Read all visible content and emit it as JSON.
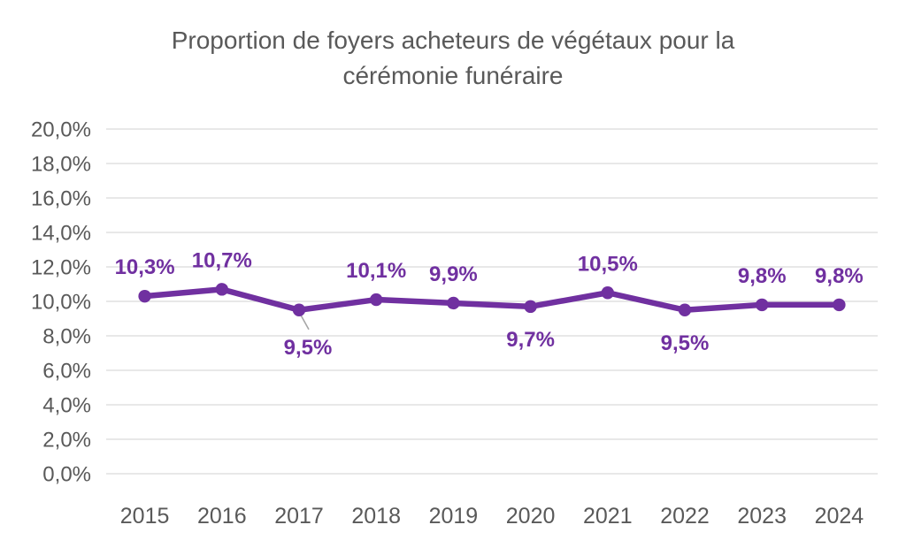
{
  "chart_data": {
    "type": "line",
    "title": "Proportion de foyers acheteurs de végétaux pour la cérémonie funéraire",
    "categories": [
      "2015",
      "2016",
      "2017",
      "2018",
      "2019",
      "2020",
      "2021",
      "2022",
      "2023",
      "2024"
    ],
    "values": [
      10.3,
      10.7,
      9.5,
      10.1,
      9.9,
      9.7,
      10.5,
      9.5,
      9.8,
      9.8
    ],
    "value_labels": [
      "10,3%",
      "10,7%",
      "9,5%",
      "10,1%",
      "9,9%",
      "9,7%",
      "10,5%",
      "9,5%",
      "9,8%",
      "9,8%"
    ],
    "label_positions": [
      "above",
      "above",
      "below",
      "above",
      "above",
      "below",
      "above",
      "below",
      "above",
      "above"
    ],
    "leader_line_index": 2,
    "y_ticks": [
      0,
      2,
      4,
      6,
      8,
      10,
      12,
      14,
      16,
      18,
      20
    ],
    "y_tick_labels": [
      "0,0%",
      "2,0%",
      "4,0%",
      "6,0%",
      "8,0%",
      "10,0%",
      "12,0%",
      "14,0%",
      "16,0%",
      "18,0%",
      "20,0%"
    ],
    "ylim": [
      0,
      20
    ],
    "grid": true,
    "legend": "none",
    "xlabel": "",
    "ylabel": "",
    "colors": {
      "line": "#7030A0",
      "marker": "#7030A0",
      "data_label": "#7030A0",
      "axis_text": "#595959",
      "gridline": "#D9D9D9",
      "leader_line": "#A6A6A6",
      "background": "#FFFFFF"
    }
  }
}
